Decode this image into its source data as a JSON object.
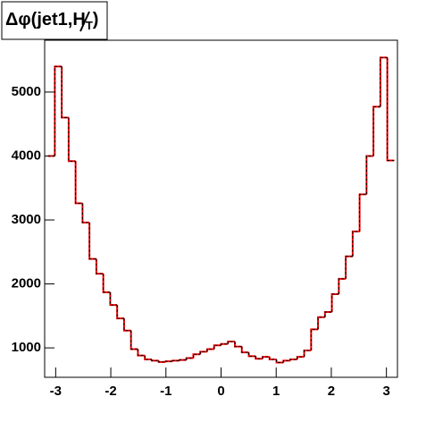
{
  "chart_data": {
    "type": "histogram",
    "title": {
      "main": "Δφ(jet1,",
      "symbol": "H",
      "subscript": "T",
      "close": ")"
    },
    "bins": [
      -3.1416,
      -3.0159,
      -2.8903,
      -2.7646,
      -2.6389,
      -2.5133,
      -2.3876,
      -2.2619,
      -2.1363,
      -2.0106,
      -1.885,
      -1.7593,
      -1.6336,
      -1.508,
      -1.3823,
      -1.2566,
      -1.131,
      -1.0053,
      -0.8796,
      -0.754,
      -0.6283,
      -0.5027,
      -0.377,
      -0.2513,
      -0.1257,
      0,
      0.1257,
      0.2513,
      0.377,
      0.5027,
      0.6283,
      0.754,
      0.8796,
      1.0053,
      1.131,
      1.2566,
      1.3823,
      1.508,
      1.6336,
      1.7593,
      1.885,
      2.0106,
      2.1363,
      2.2619,
      2.3876,
      2.5133,
      2.6389,
      2.7646,
      2.8903,
      3.0159,
      3.1416
    ],
    "values": [
      4000,
      5400,
      4600,
      3920,
      3260,
      2960,
      2390,
      2160,
      1870,
      1670,
      1460,
      1270,
      980,
      880,
      820,
      800,
      780,
      790,
      800,
      810,
      840,
      900,
      940,
      980,
      1040,
      1060,
      1100,
      1020,
      930,
      870,
      830,
      860,
      820,
      770,
      800,
      820,
      860,
      960,
      1290,
      1480,
      1560,
      1840,
      2080,
      2430,
      2820,
      3400,
      4000,
      4770,
      5540,
      3930
    ],
    "color": "#ff0000",
    "overlay_color": "#000000",
    "overlay_dashed": true,
    "xlim": [
      -3.2,
      3.2
    ],
    "xticks": [
      -3,
      -2,
      -1,
      0,
      1,
      2,
      3
    ],
    "ylim": [
      540,
      5810
    ],
    "yticks": [
      1000,
      2000,
      3000,
      4000,
      5000
    ]
  }
}
